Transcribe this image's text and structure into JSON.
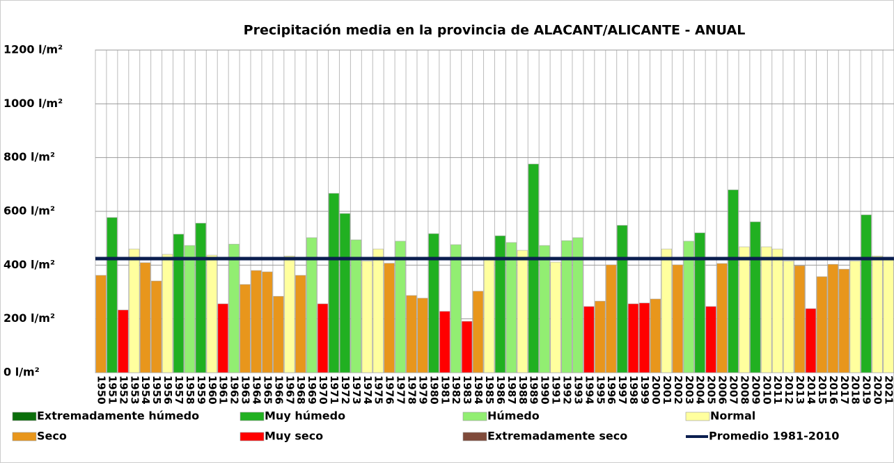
{
  "chart_data": {
    "type": "bar",
    "title": "Precipitación media en la provincia de ALACANT/ALICANTE - ANUAL",
    "categories": [
      "1950",
      "1951",
      "1952",
      "1953",
      "1954",
      "1955",
      "1956",
      "1957",
      "1958",
      "1959",
      "1960",
      "1961",
      "1962",
      "1963",
      "1964",
      "1965",
      "1966",
      "1967",
      "1968",
      "1969",
      "1970",
      "1971",
      "1972",
      "1973",
      "1974",
      "1975",
      "1976",
      "1977",
      "1978",
      "1979",
      "1980",
      "1981",
      "1982",
      "1983",
      "1984",
      "1985",
      "1986",
      "1987",
      "1988",
      "1989",
      "1990",
      "1991",
      "1992",
      "1993",
      "1994",
      "1995",
      "1996",
      "1997",
      "1998",
      "1999",
      "2000",
      "2001",
      "2002",
      "2003",
      "2004",
      "2005",
      "2006",
      "2007",
      "2008",
      "2009",
      "2010",
      "2011",
      "2012",
      "2013",
      "2014",
      "2015",
      "2016",
      "2017",
      "2018",
      "2019",
      "2020",
      "2021"
    ],
    "series": [
      {
        "name": "Extremadamente húmedo",
        "color": "#0b6e0b",
        "values": [
          null,
          null,
          null,
          null,
          null,
          null,
          null,
          null,
          null,
          null,
          null,
          null,
          null,
          null,
          null,
          null,
          null,
          null,
          null,
          null,
          null,
          null,
          null,
          null,
          null,
          null,
          null,
          null,
          null,
          null,
          null,
          null,
          null,
          null,
          null,
          null,
          null,
          null,
          null,
          null,
          null,
          null,
          null,
          null,
          null,
          null,
          null,
          null,
          null,
          null,
          null,
          null,
          null,
          null,
          null,
          null,
          null,
          null,
          null,
          null,
          null,
          null,
          null,
          null,
          null,
          null,
          null,
          null,
          null,
          null,
          null,
          null
        ]
      },
      {
        "name": "Muy húmedo",
        "color": "#21b021",
        "values": [
          null,
          577,
          null,
          null,
          null,
          null,
          null,
          515,
          null,
          556,
          null,
          null,
          null,
          null,
          null,
          null,
          null,
          null,
          null,
          null,
          null,
          667,
          592,
          null,
          null,
          null,
          null,
          null,
          null,
          null,
          517,
          null,
          null,
          null,
          null,
          null,
          509,
          null,
          null,
          776,
          null,
          null,
          null,
          null,
          null,
          null,
          null,
          548,
          null,
          null,
          null,
          null,
          null,
          null,
          520,
          null,
          null,
          680,
          null,
          561,
          null,
          null,
          null,
          null,
          null,
          null,
          null,
          null,
          null,
          587,
          null,
          null
        ]
      },
      {
        "name": "Húmedo",
        "color": "#92ee72",
        "values": [
          null,
          null,
          null,
          null,
          null,
          null,
          null,
          null,
          473,
          null,
          null,
          null,
          478,
          null,
          null,
          null,
          null,
          null,
          null,
          502,
          null,
          null,
          null,
          494,
          null,
          null,
          null,
          489,
          null,
          null,
          null,
          null,
          476,
          null,
          null,
          null,
          null,
          484,
          null,
          null,
          473,
          null,
          491,
          502,
          null,
          null,
          null,
          null,
          null,
          null,
          null,
          null,
          null,
          489,
          null,
          null,
          null,
          null,
          null,
          null,
          null,
          null,
          null,
          null,
          null,
          null,
          null,
          null,
          null,
          null,
          null,
          null
        ]
      },
      {
        "name": "Normal",
        "color": "#ffff9e",
        "values": [
          null,
          null,
          null,
          460,
          null,
          null,
          440,
          null,
          null,
          null,
          437,
          null,
          null,
          null,
          null,
          null,
          null,
          434,
          null,
          null,
          null,
          null,
          null,
          null,
          415,
          460,
          null,
          null,
          null,
          null,
          null,
          null,
          null,
          null,
          null,
          420,
          null,
          null,
          455,
          null,
          null,
          411,
          null,
          null,
          null,
          null,
          null,
          null,
          null,
          null,
          null,
          460,
          null,
          null,
          null,
          null,
          null,
          null,
          468,
          null,
          468,
          460,
          415,
          null,
          null,
          null,
          null,
          null,
          415,
          null,
          434,
          420
        ]
      },
      {
        "name": "Seco",
        "color": "#e8961c",
        "values": [
          362,
          null,
          null,
          null,
          409,
          341,
          null,
          null,
          null,
          null,
          null,
          null,
          null,
          328,
          380,
          375,
          284,
          null,
          362,
          null,
          null,
          null,
          null,
          null,
          null,
          null,
          407,
          null,
          287,
          277,
          null,
          null,
          null,
          null,
          303,
          null,
          null,
          null,
          null,
          null,
          null,
          null,
          null,
          null,
          null,
          266,
          401,
          null,
          null,
          null,
          274,
          null,
          401,
          null,
          null,
          null,
          406,
          null,
          null,
          null,
          null,
          null,
          null,
          398,
          null,
          357,
          403,
          385,
          null,
          null,
          null,
          null
        ]
      },
      {
        "name": "Muy seco",
        "color": "#ff0000",
        "values": [
          null,
          null,
          233,
          null,
          null,
          null,
          null,
          null,
          null,
          null,
          null,
          256,
          null,
          null,
          null,
          null,
          null,
          null,
          null,
          null,
          256,
          null,
          null,
          null,
          null,
          null,
          null,
          null,
          null,
          null,
          null,
          228,
          null,
          191,
          null,
          null,
          null,
          null,
          null,
          null,
          null,
          null,
          null,
          null,
          246,
          null,
          null,
          null,
          256,
          259,
          null,
          null,
          null,
          null,
          null,
          246,
          null,
          null,
          null,
          null,
          null,
          null,
          null,
          null,
          238,
          null,
          null,
          null,
          null,
          null,
          null,
          null
        ]
      },
      {
        "name": "Extremadamente seco",
        "color": "#7f4a3a",
        "values": [
          null,
          null,
          null,
          null,
          null,
          null,
          null,
          null,
          null,
          null,
          null,
          null,
          null,
          null,
          null,
          null,
          null,
          null,
          null,
          null,
          null,
          null,
          null,
          null,
          null,
          null,
          null,
          null,
          null,
          null,
          null,
          null,
          null,
          null,
          null,
          null,
          null,
          null,
          null,
          null,
          null,
          null,
          null,
          null,
          null,
          null,
          null,
          null,
          null,
          null,
          null,
          null,
          null,
          null,
          null,
          null,
          null,
          null,
          null,
          null,
          null,
          null,
          null,
          null,
          null,
          null,
          null,
          null,
          null,
          null,
          null,
          null
        ]
      }
    ],
    "reference_line": {
      "name": "Promedio 1981-2010",
      "value": 424,
      "color": "#0b1e4f"
    },
    "ylim": [
      0,
      1200
    ],
    "yticks": [
      {
        "value": 0,
        "label": "0 l/m²"
      },
      {
        "value": 200,
        "label": "200 l/m²"
      },
      {
        "value": 400,
        "label": "400 l/m²"
      },
      {
        "value": 600,
        "label": "600 l/m²"
      },
      {
        "value": 800,
        "label": "800 l/m²"
      },
      {
        "value": 1000,
        "label": "1000 l/m²"
      },
      {
        "value": 1200,
        "label": "1200 l/m²"
      }
    ],
    "grid": true
  }
}
